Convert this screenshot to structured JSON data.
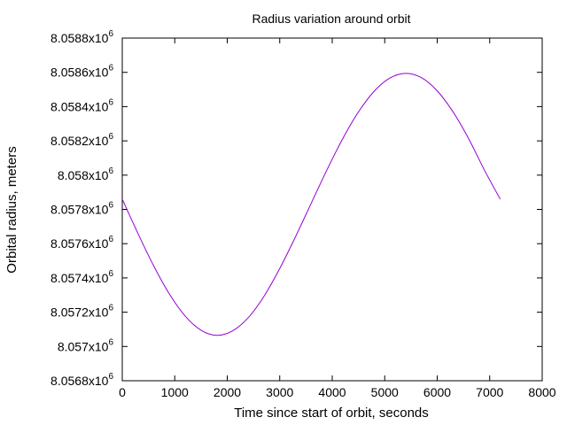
{
  "chart_data": {
    "type": "line",
    "title": "Radius variation around orbit",
    "xlabel": "Time since start of orbit, seconds",
    "ylabel": "Orbital radius, meters",
    "xlim": [
      0,
      8000
    ],
    "ylim": [
      8056800,
      8058800
    ],
    "x_ticks": [
      0,
      1000,
      2000,
      3000,
      4000,
      5000,
      6000,
      7000,
      8000
    ],
    "x_tick_labels": [
      "0",
      "1000",
      "2000",
      "3000",
      "4000",
      "5000",
      "6000",
      "7000",
      "8000"
    ],
    "y_ticks": [
      8056800,
      8057000,
      8057200,
      8057400,
      8057600,
      8057800,
      8058000,
      8058200,
      8058400,
      8058600,
      8058800
    ],
    "y_tick_labels": [
      {
        "mantissa": "8.0568x10",
        "exp": "6"
      },
      {
        "mantissa": "8.057x10",
        "exp": "6"
      },
      {
        "mantissa": "8.0572x10",
        "exp": "6"
      },
      {
        "mantissa": "8.0574x10",
        "exp": "6"
      },
      {
        "mantissa": "8.0576x10",
        "exp": "6"
      },
      {
        "mantissa": "8.0578x10",
        "exp": "6"
      },
      {
        "mantissa": "8.058x10",
        "exp": "6"
      },
      {
        "mantissa": "8.0582x10",
        "exp": "6"
      },
      {
        "mantissa": "8.0584x10",
        "exp": "6"
      },
      {
        "mantissa": "8.0586x10",
        "exp": "6"
      },
      {
        "mantissa": "8.0588x10",
        "exp": "6"
      }
    ],
    "grid": false,
    "legend": "none",
    "series": [
      {
        "color": "#9400d3",
        "x": [
          0,
          300,
          600,
          900,
          1200,
          1500,
          1800,
          2100,
          2400,
          2700,
          3000,
          3300,
          3600,
          3900,
          4200,
          4500,
          4800,
          5100,
          5400,
          5700,
          6000,
          6300,
          6600,
          6900,
          7200
        ],
        "y": [
          8057860,
          8057659,
          8057470,
          8057305,
          8057177,
          8057095,
          8057065,
          8057091,
          8057168,
          8057293,
          8057455,
          8057640,
          8057836,
          8058031,
          8058213,
          8058369,
          8058490,
          8058567,
          8058594,
          8058569,
          8058492,
          8058370,
          8058212,
          8058029,
          8057860
        ]
      }
    ]
  }
}
